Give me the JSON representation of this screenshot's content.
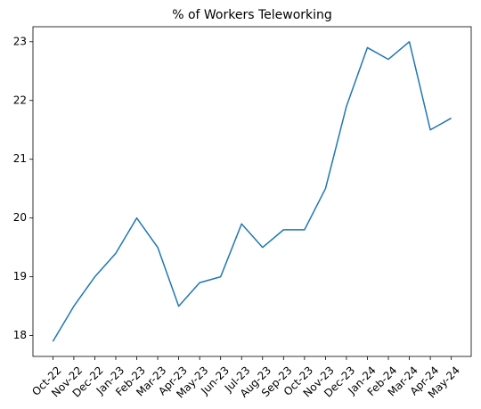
{
  "chart_data": {
    "type": "line",
    "title": "% of Workers Teleworking",
    "categories": [
      "Oct-22",
      "Nov-22",
      "Dec-22",
      "Jan-23",
      "Feb-23",
      "Mar-23",
      "Apr-23",
      "May-23",
      "Jun-23",
      "Jul-23",
      "Aug-23",
      "Sep-23",
      "Oct-23",
      "Nov-23",
      "Dec-23",
      "Jan-24",
      "Feb-24",
      "Mar-24",
      "Apr-24",
      "May-24"
    ],
    "values": [
      17.9,
      18.5,
      19.0,
      19.4,
      20.0,
      19.5,
      18.5,
      18.9,
      19.0,
      19.9,
      19.5,
      19.8,
      19.8,
      20.5,
      21.9,
      22.9,
      22.7,
      23.0,
      21.5,
      21.7
    ],
    "color": "#1f77b4",
    "ylim": [
      17.645,
      23.255
    ],
    "yticks": [
      18,
      19,
      20,
      21,
      22,
      23
    ],
    "grid": false
  }
}
